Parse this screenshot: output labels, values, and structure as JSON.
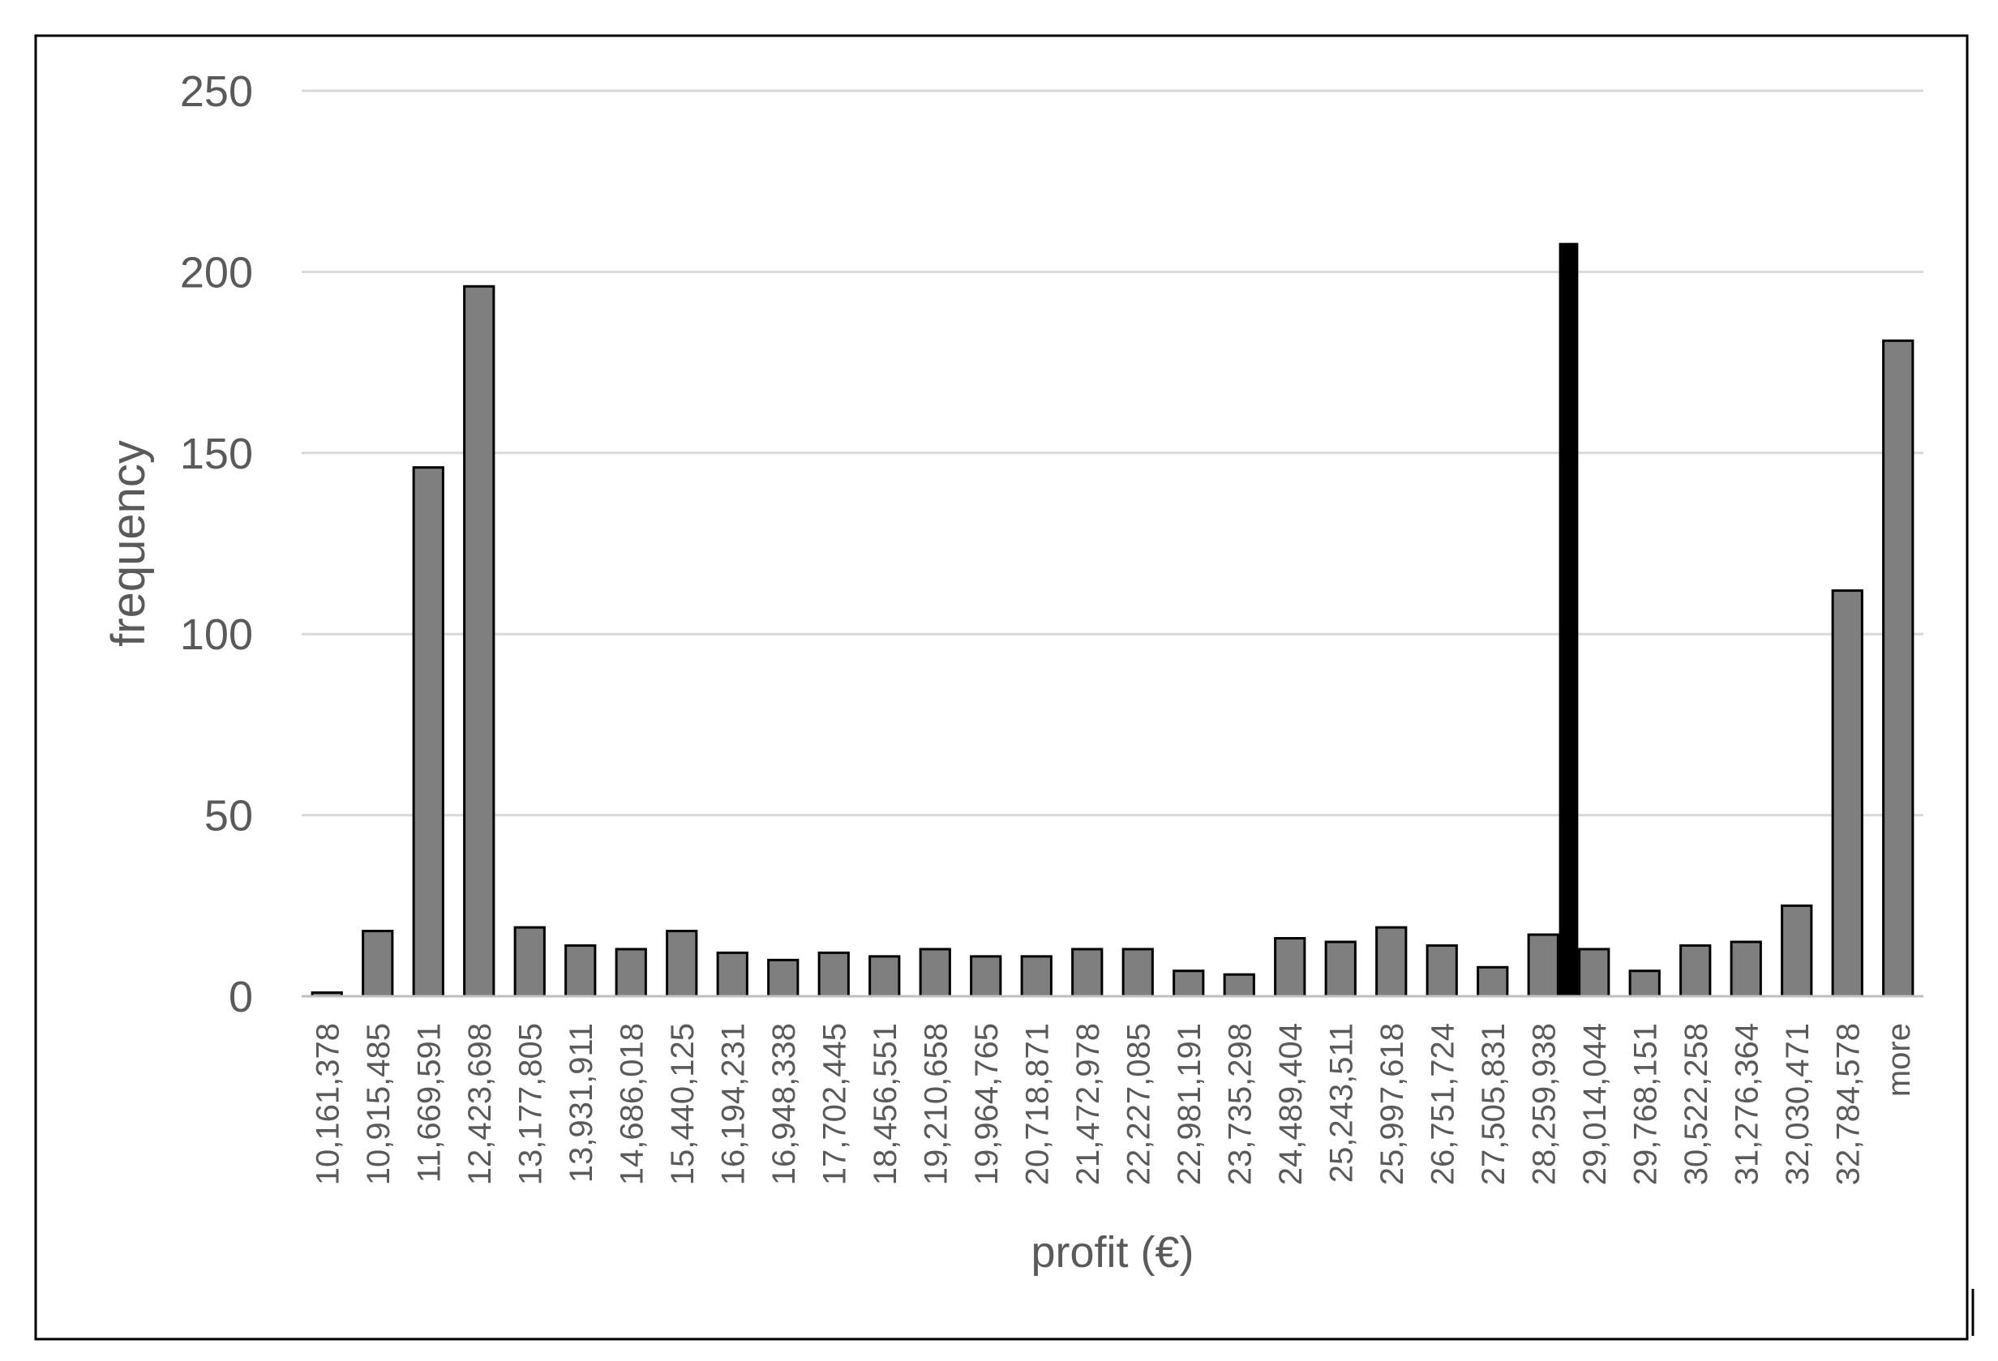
{
  "chart_data": {
    "type": "bar",
    "title": "",
    "xlabel": "profit (€)",
    "ylabel": "frequency",
    "ylim": [
      0,
      250
    ],
    "yticks": [
      0,
      50,
      100,
      150,
      200,
      250
    ],
    "grid": true,
    "legend": "none",
    "colors": {
      "bar_fill": "#7f7f7f",
      "bar_stroke": "#000000",
      "highlight_bar": "#000000",
      "grid": "#d9d9d9",
      "axis": "#bfbfbf",
      "text": "#5a5a5a",
      "frame": "#000000"
    },
    "categories": [
      "10,161,378",
      "10,915,485",
      "11,669,591",
      "12,423,698",
      "13,177,805",
      "13,931,911",
      "14,686,018",
      "15,440,125",
      "16,194,231",
      "16,948,338",
      "17,702,445",
      "18,456,551",
      "19,210,658",
      "19,964,765",
      "20,718,871",
      "21,472,978",
      "22,227,085",
      "22,981,191",
      "23,735,298",
      "24,489,404",
      "25,243,511",
      "25,997,618",
      "26,751,724",
      "27,505,831",
      "28,259,938",
      "29,014,044",
      "29,768,151",
      "30,522,258",
      "31,276,364",
      "32,030,471",
      "32,784,578",
      "more"
    ],
    "values": [
      1,
      18,
      146,
      196,
      19,
      14,
      13,
      18,
      12,
      10,
      12,
      11,
      13,
      11,
      11,
      13,
      13,
      7,
      6,
      16,
      15,
      19,
      14,
      8,
      17,
      13,
      7,
      14,
      15,
      25,
      112,
      181
    ],
    "highlight_marker": {
      "value": 208,
      "between_categories": [
        "28,259,938",
        "29,014,044"
      ]
    }
  }
}
